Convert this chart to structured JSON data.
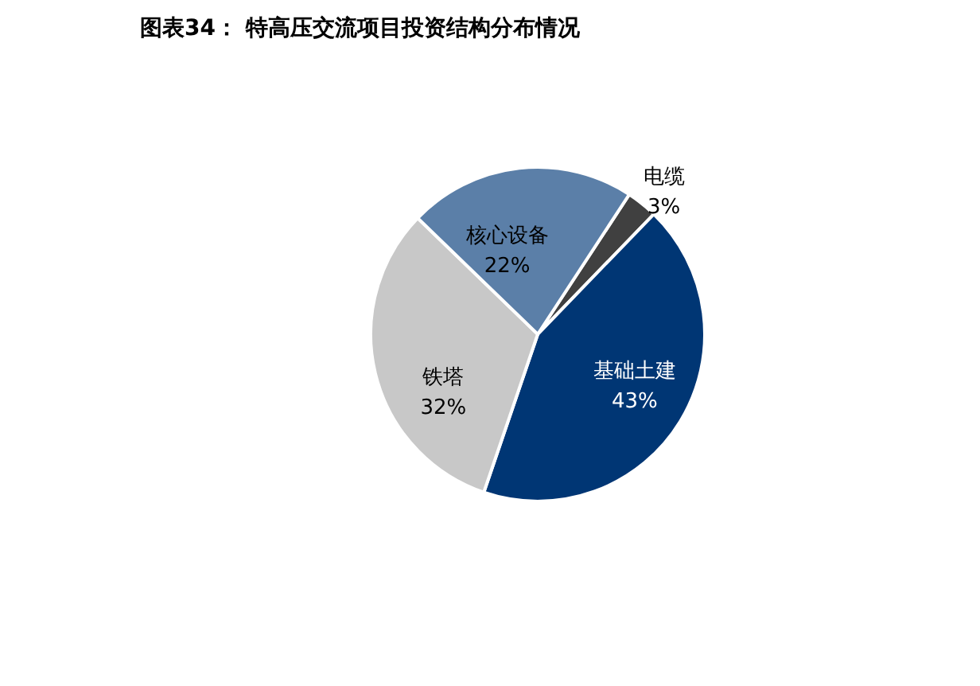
{
  "chart_data": {
    "type": "pie",
    "title": "图表34：  特高压交流项目投资结构分布情况",
    "categories": [
      "电缆",
      "基础土建",
      "铁塔",
      "核心设备"
    ],
    "values": [
      3,
      43,
      32,
      22
    ],
    "value_labels": [
      "3%",
      "43%",
      "32%",
      "22%"
    ],
    "colors": [
      "#404040",
      "#003674",
      "#c8c8c8",
      "#5b7fa8"
    ]
  }
}
